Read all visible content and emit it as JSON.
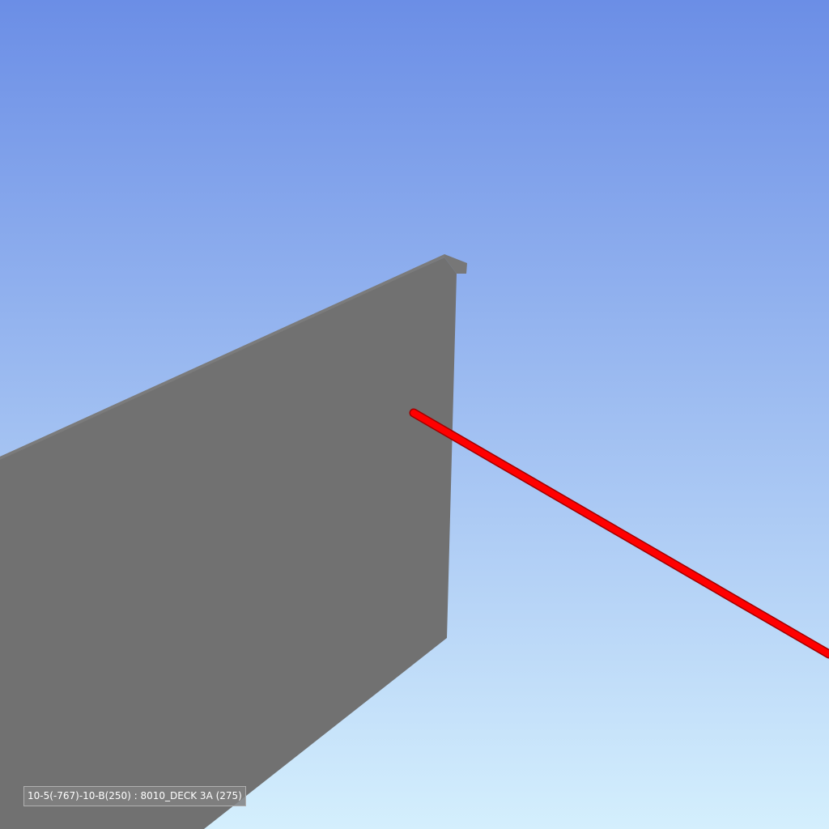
{
  "viewport": {
    "background_top": "#6b8ee6",
    "background_bottom": "#d4effd"
  },
  "beam": {
    "color": "#717171",
    "flange_color": "#777777",
    "top_color": "#7b7b7b"
  },
  "red_member": {
    "color": "#ff0000",
    "edge_color": "#a00000"
  },
  "tooltip": {
    "text": "10-5(-767)-10-B(250) : 8010_DECK 3A (275)"
  }
}
